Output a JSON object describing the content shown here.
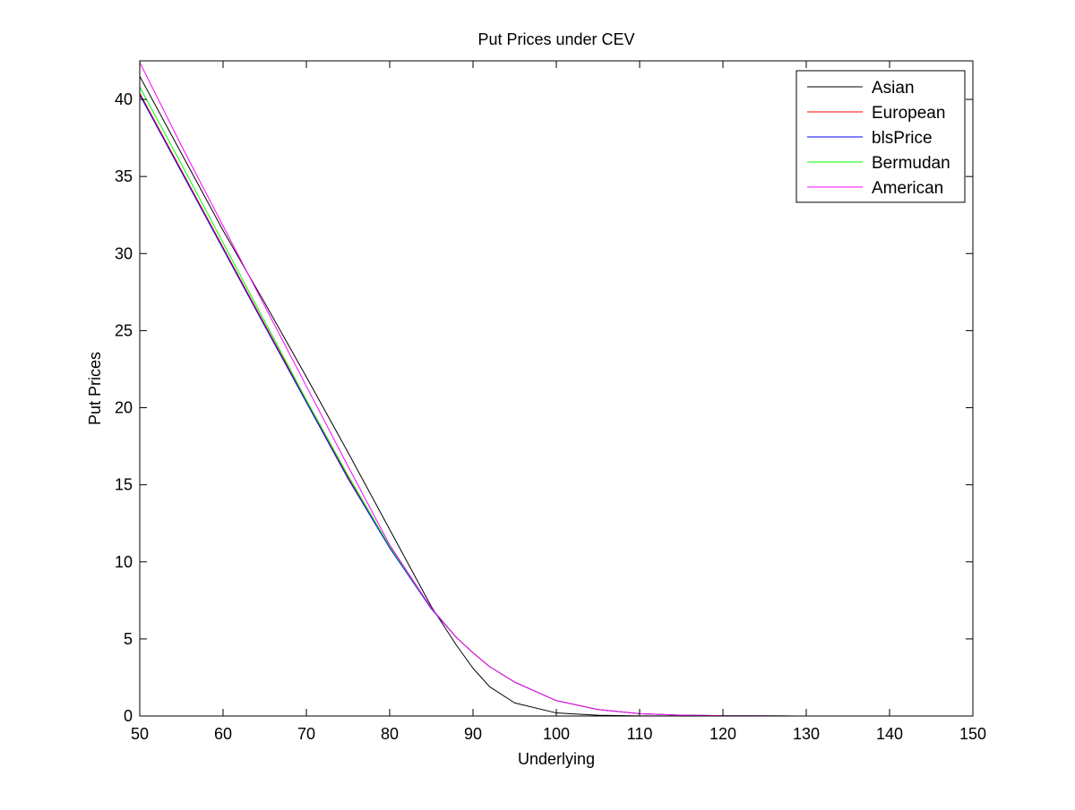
{
  "chart_data": {
    "type": "line",
    "title": "Put Prices under CEV",
    "xlabel": "Underlying",
    "ylabel": "Put Prices",
    "xlim": [
      50,
      150
    ],
    "ylim": [
      0,
      42.5
    ],
    "xticks": [
      50,
      60,
      70,
      80,
      90,
      100,
      110,
      120,
      130,
      140,
      150
    ],
    "yticks": [
      0,
      5,
      10,
      15,
      20,
      25,
      30,
      35,
      40
    ],
    "grid": false,
    "legend_position": "top-right",
    "x": [
      50,
      55,
      60,
      65,
      70,
      75,
      80,
      85,
      88,
      90,
      92,
      95,
      100,
      105,
      110,
      115,
      120,
      130,
      140,
      150
    ],
    "series": [
      {
        "name": "Asian",
        "color": "#000000",
        "values": [
          41.5,
          36.5,
          31.5,
          26.8,
          22.0,
          17.1,
          12.1,
          7.1,
          4.6,
          3.1,
          1.9,
          0.85,
          0.2,
          0.05,
          0.01,
          0.0,
          0.0,
          0.0,
          0.0,
          0.0
        ]
      },
      {
        "name": "European",
        "color": "#ff0000",
        "values": [
          40.4,
          35.4,
          30.4,
          25.4,
          20.45,
          15.5,
          11.0,
          7.0,
          5.1,
          4.1,
          3.2,
          2.2,
          1.0,
          0.42,
          0.15,
          0.05,
          0.02,
          0.0,
          0.0,
          0.0
        ]
      },
      {
        "name": "blsPrice",
        "color": "#0000ff",
        "values": [
          40.3,
          35.3,
          30.3,
          25.3,
          20.35,
          15.4,
          10.9,
          6.95,
          5.1,
          4.1,
          3.2,
          2.2,
          1.0,
          0.42,
          0.15,
          0.05,
          0.02,
          0.0,
          0.0,
          0.0
        ]
      },
      {
        "name": "Bermudan",
        "color": "#00ff00",
        "values": [
          40.8,
          35.8,
          30.7,
          25.6,
          20.5,
          15.6,
          11.0,
          7.0,
          5.1,
          4.1,
          3.2,
          2.2,
          1.0,
          0.42,
          0.15,
          0.05,
          0.02,
          0.0,
          0.0,
          0.0
        ]
      },
      {
        "name": "American",
        "color": "#ff00ff",
        "values": [
          42.4,
          37.0,
          31.8,
          26.6,
          21.4,
          16.2,
          11.1,
          7.0,
          5.1,
          4.1,
          3.2,
          2.2,
          1.0,
          0.42,
          0.15,
          0.05,
          0.02,
          0.0,
          0.0,
          0.0
        ]
      }
    ]
  }
}
